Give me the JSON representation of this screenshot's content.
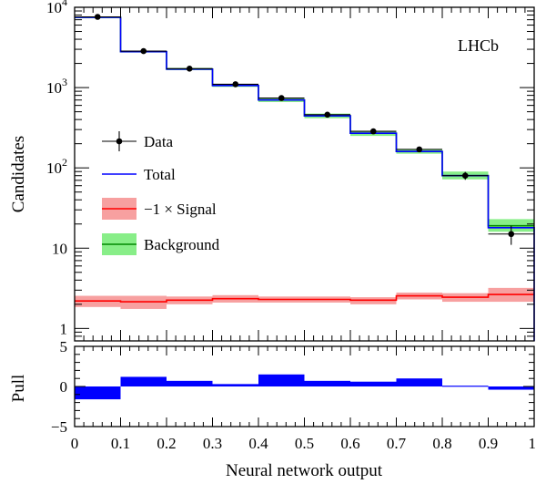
{
  "chart_data": [
    {
      "type": "histogram",
      "panel": "main",
      "ylabel": "Candidates",
      "yscale": "log",
      "ylim": [
        0.7,
        10000
      ],
      "y_tick_labels": [
        {
          "value": 1,
          "label": "1"
        },
        {
          "value": 10,
          "label": "10"
        },
        {
          "value": 100,
          "label": "10^2"
        },
        {
          "value": 1000,
          "label": "10^3"
        },
        {
          "value": 10000,
          "label": "10^4"
        }
      ],
      "annotation": "LHCb",
      "bin_edges": [
        0,
        0.1,
        0.2,
        0.3,
        0.4,
        0.5,
        0.6,
        0.7,
        0.8,
        0.9,
        1.0
      ],
      "series": [
        {
          "name": "Data",
          "kind": "points",
          "color": "#000000",
          "values": [
            7600,
            2850,
            1720,
            1100,
            740,
            460,
            285,
            170,
            80,
            15
          ],
          "errors": [
            87,
            53,
            41,
            33,
            27,
            21,
            17,
            13,
            9,
            4
          ]
        },
        {
          "name": "Total",
          "kind": "step",
          "color": "#0000ff",
          "values": [
            7500,
            2800,
            1700,
            1060,
            700,
            445,
            270,
            160,
            80,
            18
          ]
        },
        {
          "name": "−1 × Signal",
          "kind": "step_band",
          "color": "#ff0000",
          "band_color": "#f7a0a0",
          "values": [
            2.2,
            2.15,
            2.25,
            2.35,
            2.3,
            2.3,
            2.25,
            2.55,
            2.45,
            2.65
          ],
          "band_low": [
            1.85,
            1.75,
            2.0,
            2.1,
            2.1,
            2.1,
            2.0,
            2.3,
            2.15,
            2.15
          ],
          "band_high": [
            2.55,
            2.55,
            2.5,
            2.6,
            2.5,
            2.5,
            2.45,
            2.8,
            2.75,
            3.2
          ]
        },
        {
          "name": "Background",
          "kind": "step_band",
          "color": "#008800",
          "band_color": "#88ee88",
          "values": [
            7500,
            2800,
            1700,
            1060,
            700,
            445,
            270,
            160,
            80,
            19
          ],
          "band_low": [
            7300,
            2730,
            1650,
            1020,
            660,
            415,
            250,
            150,
            72,
            16
          ],
          "band_high": [
            7700,
            2880,
            1760,
            1100,
            740,
            475,
            290,
            172,
            90,
            23
          ]
        }
      ],
      "legend": {
        "position": "left",
        "entries": [
          "Data",
          "Total",
          "−1 × Signal",
          "Background"
        ]
      }
    },
    {
      "type": "bar",
      "panel": "pull",
      "xlabel": "Neural network output",
      "ylabel": "Pull",
      "xlim": [
        0,
        1
      ],
      "ylim": [
        -5,
        5
      ],
      "x_tick_labels": [
        "0",
        "0.1",
        "0.2",
        "0.3",
        "0.4",
        "0.5",
        "0.6",
        "0.7",
        "0.8",
        "0.9",
        "1"
      ],
      "y_tick_labels": [
        "5",
        "0",
        "−5"
      ],
      "bin_edges": [
        0,
        0.1,
        0.2,
        0.3,
        0.4,
        0.5,
        0.6,
        0.7,
        0.8,
        0.9,
        1.0
      ],
      "values": [
        -1.6,
        1.2,
        0.7,
        0.3,
        1.5,
        0.7,
        0.6,
        1.0,
        0.1,
        -0.4
      ],
      "color": "#0000ff"
    }
  ]
}
